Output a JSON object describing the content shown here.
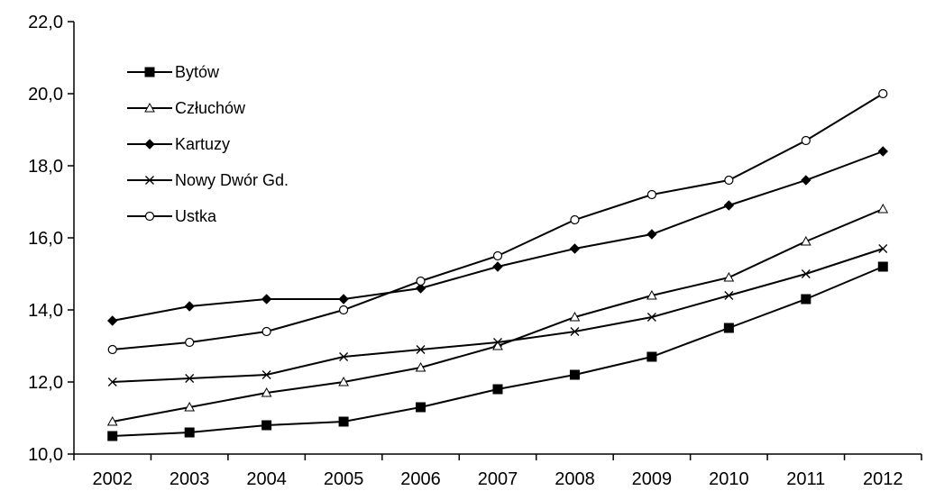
{
  "chart_data": {
    "type": "line",
    "title": "",
    "xlabel": "",
    "ylabel": "",
    "x": [
      "2002",
      "2003",
      "2004",
      "2005",
      "2006",
      "2007",
      "2008",
      "2009",
      "2010",
      "2011",
      "2012"
    ],
    "ylim": [
      10.0,
      22.0
    ],
    "yticks": [
      "10,0",
      "12,0",
      "14,0",
      "16,0",
      "18,0",
      "20,0",
      "22,0"
    ],
    "yticks_values": [
      10,
      12,
      14,
      16,
      18,
      20,
      22
    ],
    "grid": false,
    "legend_position": "top-left",
    "series": [
      {
        "name": "Bytów",
        "marker": "filled-square",
        "values": [
          10.5,
          10.6,
          10.8,
          10.9,
          11.3,
          11.8,
          12.2,
          12.7,
          13.5,
          14.3,
          15.2
        ]
      },
      {
        "name": "Człuchów",
        "marker": "open-triangle",
        "values": [
          10.9,
          11.3,
          11.7,
          12.0,
          12.4,
          13.0,
          13.8,
          14.4,
          14.9,
          15.9,
          16.8
        ]
      },
      {
        "name": "Kartuzy",
        "marker": "filled-diamond",
        "values": [
          13.7,
          14.1,
          14.3,
          14.3,
          14.6,
          15.2,
          15.7,
          16.1,
          16.9,
          17.6,
          18.4
        ]
      },
      {
        "name": "Nowy Dwór Gd.",
        "marker": "x-cross",
        "values": [
          12.0,
          12.1,
          12.2,
          12.7,
          12.9,
          13.1,
          13.4,
          13.8,
          14.4,
          15.0,
          15.7
        ]
      },
      {
        "name": "Ustka",
        "marker": "open-circle",
        "values": [
          12.9,
          13.1,
          13.4,
          14.0,
          14.8,
          15.5,
          16.5,
          17.2,
          17.6,
          18.7,
          20.0
        ]
      }
    ],
    "line_color": "#000000"
  }
}
